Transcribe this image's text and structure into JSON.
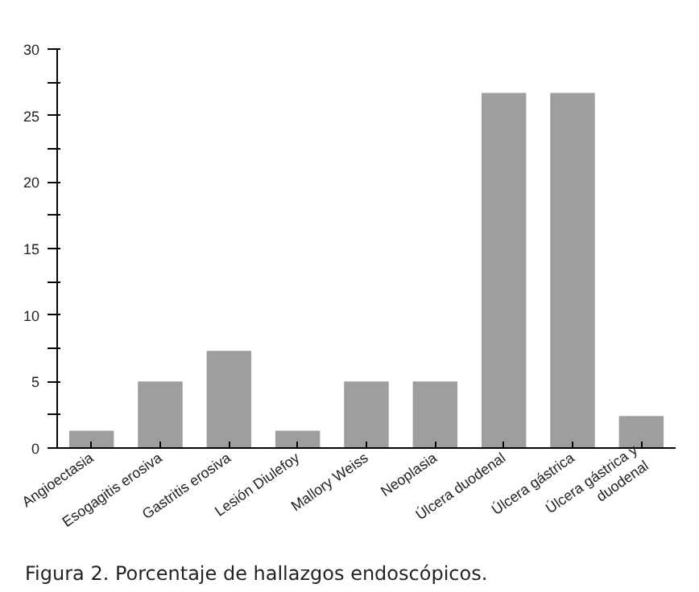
{
  "chart_data": {
    "type": "bar",
    "categories": [
      "Angioectasia",
      "Esogagitis erosiva",
      "Gastritis erosiva",
      "Lesión Diulefoy",
      "Mallory Weiss",
      "Neoplasia",
      "Úlcera duodenal",
      "Úlcera gástrica",
      "Úlcera gástrica y\nduodenal"
    ],
    "values": [
      1.3,
      5.0,
      7.3,
      1.3,
      5.0,
      5.0,
      26.7,
      26.7,
      2.4
    ],
    "color": "#9e9e9e",
    "ylim": [
      0,
      30
    ],
    "yticks": [
      0,
      {
        "value": 2.5,
        "label": null
      },
      5,
      {
        "value": 7.5,
        "label": null
      },
      10,
      {
        "value": 12.5,
        "label": null
      },
      15,
      {
        "value": 17.5,
        "label": null
      },
      20,
      {
        "value": 22.5,
        "label": null
      },
      25,
      {
        "value": 27.5,
        "label": null
      },
      30
    ],
    "grid": false,
    "annotations": [
      "Figura 2. Porcentaje de hallazgos endoscópicos."
    ]
  }
}
